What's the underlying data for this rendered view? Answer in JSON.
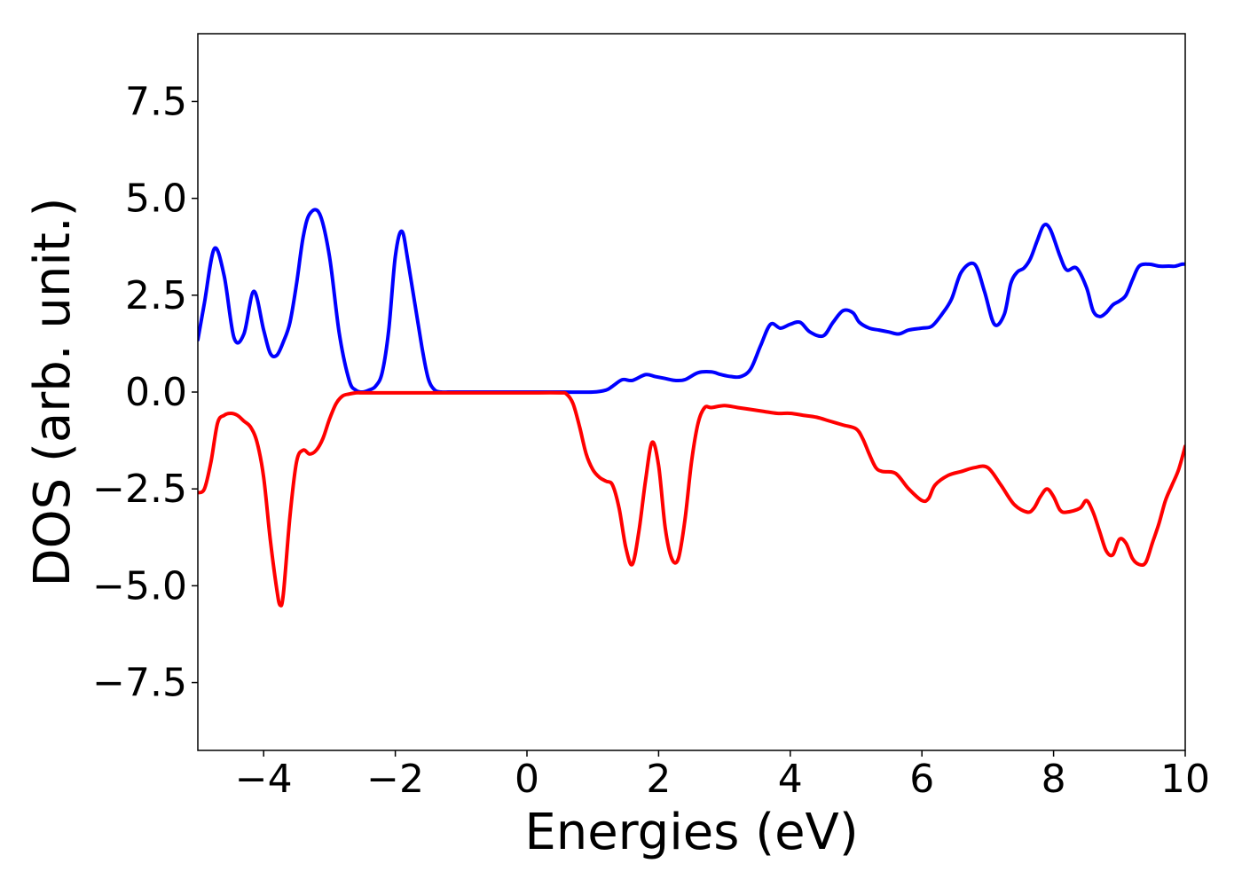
{
  "chart_data": {
    "type": "line",
    "title": "",
    "xlabel": "Energies (eV)",
    "ylabel": "DOS (arb. unit.)",
    "xlim": [
      -5,
      10
    ],
    "ylim": [
      -9.25,
      9.25
    ],
    "xticks": [
      -4,
      -2,
      0,
      2,
      4,
      6,
      8,
      10
    ],
    "xtick_labels": [
      "−4",
      "−2",
      "0",
      "2",
      "4",
      "6",
      "8",
      "10"
    ],
    "yticks": [
      7.5,
      5.0,
      2.5,
      0.0,
      -2.5,
      -5.0,
      -7.5
    ],
    "ytick_labels": [
      "7.5",
      "5.0",
      "2.5",
      "0.0",
      "−2.5",
      "−5.0",
      "−7.5"
    ],
    "grid": false,
    "legend": "none",
    "series": [
      {
        "color": "#0000ff",
        "x": [
          -5.0,
          -4.9,
          -4.75,
          -4.6,
          -4.45,
          -4.3,
          -4.15,
          -4.0,
          -3.9,
          -3.8,
          -3.7,
          -3.6,
          -3.5,
          -3.4,
          -3.3,
          -3.15,
          -3.0,
          -2.85,
          -2.7,
          -2.6,
          -2.5,
          -2.4,
          -2.3,
          -2.2,
          -2.1,
          -2.0,
          -1.9,
          -1.8,
          -1.6,
          -1.5,
          -1.4,
          -1.3,
          -1.2,
          -1.1,
          -1.0,
          -0.9,
          -0.8,
          -0.7,
          -0.6,
          -0.5,
          -0.3,
          0.0,
          0.5,
          1.0,
          1.2,
          1.3,
          1.45,
          1.6,
          1.8,
          1.95,
          2.1,
          2.25,
          2.4,
          2.6,
          2.8,
          2.95,
          3.1,
          3.25,
          3.4,
          3.55,
          3.7,
          3.85,
          4.0,
          4.15,
          4.3,
          4.5,
          4.65,
          4.8,
          4.95,
          5.05,
          5.2,
          5.35,
          5.5,
          5.65,
          5.8,
          6.0,
          6.15,
          6.3,
          6.45,
          6.6,
          6.8,
          6.95,
          7.1,
          7.25,
          7.35,
          7.45,
          7.55,
          7.65,
          7.75,
          7.85,
          7.95,
          8.1,
          8.2,
          8.35,
          8.5,
          8.6,
          8.7,
          8.8,
          8.9,
          9.0,
          9.1,
          9.2,
          9.3,
          9.45,
          9.6,
          9.75,
          9.85,
          9.95,
          10.0
        ],
        "y": [
          1.35,
          2.3,
          3.7,
          3.0,
          1.4,
          1.5,
          2.6,
          1.6,
          1.0,
          0.95,
          1.3,
          1.8,
          2.8,
          4.0,
          4.6,
          4.6,
          3.5,
          1.5,
          0.3,
          0.05,
          0.0,
          0.05,
          0.15,
          0.5,
          1.6,
          3.5,
          4.15,
          3.3,
          1.2,
          0.35,
          0.05,
          0.0,
          0.0,
          0.0,
          0.0,
          0.0,
          0.0,
          0.0,
          0.0,
          0.0,
          0.0,
          0.0,
          0.0,
          0.0,
          0.05,
          0.15,
          0.32,
          0.3,
          0.45,
          0.4,
          0.35,
          0.3,
          0.32,
          0.5,
          0.52,
          0.45,
          0.4,
          0.4,
          0.6,
          1.2,
          1.75,
          1.65,
          1.75,
          1.8,
          1.55,
          1.45,
          1.8,
          2.1,
          2.05,
          1.8,
          1.65,
          1.6,
          1.55,
          1.5,
          1.6,
          1.65,
          1.7,
          2.0,
          2.4,
          3.1,
          3.3,
          2.6,
          1.75,
          2.0,
          2.8,
          3.1,
          3.2,
          3.45,
          3.9,
          4.3,
          4.2,
          3.5,
          3.15,
          3.2,
          2.7,
          2.1,
          1.95,
          2.05,
          2.25,
          2.35,
          2.5,
          2.9,
          3.25,
          3.3,
          3.25,
          3.25,
          3.25,
          3.3,
          3.3
        ]
      },
      {
        "color": "#ff0000",
        "x": [
          -5.0,
          -4.9,
          -4.8,
          -4.7,
          -4.6,
          -4.5,
          -4.4,
          -4.3,
          -4.2,
          -4.1,
          -4.0,
          -3.9,
          -3.8,
          -3.75,
          -3.7,
          -3.6,
          -3.5,
          -3.4,
          -3.3,
          -3.2,
          -3.1,
          -3.0,
          -2.9,
          -2.8,
          -2.7,
          -2.6,
          -2.5,
          -2.4,
          -2.2,
          -2.0,
          -1.5,
          -1.0,
          -0.5,
          0.0,
          0.5,
          0.6,
          0.7,
          0.8,
          0.9,
          1.0,
          1.1,
          1.2,
          1.3,
          1.4,
          1.5,
          1.6,
          1.7,
          1.8,
          1.9,
          2.0,
          2.1,
          2.2,
          2.3,
          2.4,
          2.5,
          2.6,
          2.7,
          2.8,
          3.0,
          3.2,
          3.4,
          3.6,
          3.8,
          4.0,
          4.2,
          4.4,
          4.6,
          4.8,
          5.0,
          5.1,
          5.2,
          5.3,
          5.4,
          5.6,
          5.8,
          6.0,
          6.1,
          6.2,
          6.4,
          6.6,
          6.8,
          7.0,
          7.2,
          7.4,
          7.6,
          7.7,
          7.8,
          7.9,
          8.0,
          8.1,
          8.2,
          8.4,
          8.5,
          8.6,
          8.7,
          8.8,
          8.9,
          9.0,
          9.1,
          9.2,
          9.3,
          9.4,
          9.5,
          9.6,
          9.7,
          9.8,
          9.9,
          10.0
        ],
        "y": [
          -2.6,
          -2.5,
          -1.8,
          -0.8,
          -0.6,
          -0.55,
          -0.6,
          -0.75,
          -0.9,
          -1.3,
          -2.2,
          -3.8,
          -5.1,
          -5.5,
          -5.2,
          -3.2,
          -1.8,
          -1.5,
          -1.6,
          -1.5,
          -1.2,
          -0.7,
          -0.3,
          -0.1,
          -0.05,
          -0.02,
          -0.02,
          -0.02,
          -0.02,
          -0.02,
          -0.02,
          -0.02,
          -0.02,
          -0.02,
          -0.02,
          -0.05,
          -0.3,
          -0.9,
          -1.6,
          -2.0,
          -2.2,
          -2.3,
          -2.4,
          -3.0,
          -4.0,
          -4.45,
          -3.6,
          -2.3,
          -1.3,
          -1.9,
          -3.5,
          -4.3,
          -4.3,
          -3.3,
          -1.8,
          -0.8,
          -0.4,
          -0.4,
          -0.35,
          -0.4,
          -0.45,
          -0.5,
          -0.55,
          -0.55,
          -0.6,
          -0.65,
          -0.75,
          -0.85,
          -0.95,
          -1.2,
          -1.6,
          -1.95,
          -2.05,
          -2.1,
          -2.5,
          -2.8,
          -2.75,
          -2.4,
          -2.15,
          -2.05,
          -1.95,
          -1.95,
          -2.4,
          -2.9,
          -3.1,
          -3.0,
          -2.7,
          -2.5,
          -2.7,
          -3.05,
          -3.1,
          -3.0,
          -2.8,
          -3.1,
          -3.6,
          -4.1,
          -4.2,
          -3.8,
          -3.9,
          -4.3,
          -4.45,
          -4.4,
          -3.9,
          -3.4,
          -2.8,
          -2.4,
          -2.0,
          -1.4
        ]
      }
    ]
  }
}
